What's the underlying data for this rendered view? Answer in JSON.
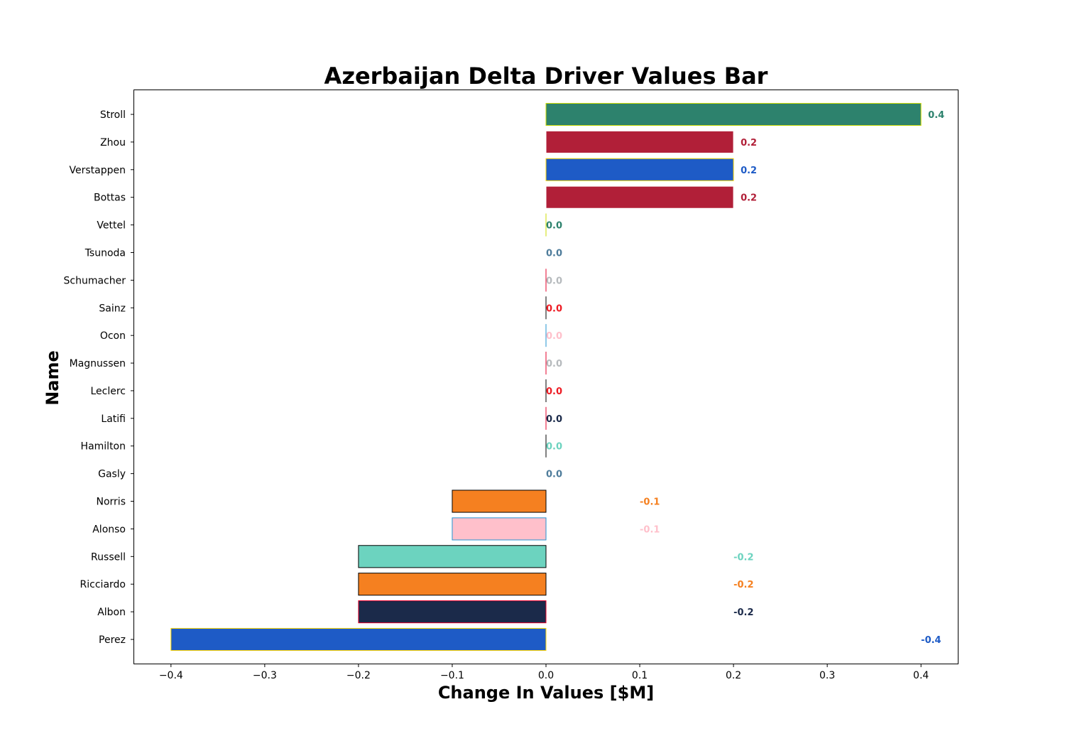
{
  "chart_data": {
    "type": "bar",
    "orientation": "horizontal",
    "title": "Azerbaijan Delta Driver Values Bar",
    "xlabel": "Change In Values [$M]",
    "ylabel": "Name",
    "xlim": [
      -0.44,
      0.44
    ],
    "xticks": [
      -0.4,
      -0.3,
      -0.2,
      -0.1,
      0.0,
      0.1,
      0.2,
      0.3,
      0.4
    ],
    "xtick_labels": [
      "−0.4",
      "−0.3",
      "−0.2",
      "−0.1",
      "0.0",
      "0.1",
      "0.2",
      "0.3",
      "0.4"
    ],
    "grid": false,
    "bars": [
      {
        "name": "Stroll",
        "value": 0.4,
        "label": "0.4",
        "fill": "#2d826d",
        "edge": "#cedc00"
      },
      {
        "name": "Zhou",
        "value": 0.2,
        "label": "0.2",
        "fill": "#b11f38",
        "edge": "#ffffff"
      },
      {
        "name": "Verstappen",
        "value": 0.2,
        "label": "0.2",
        "fill": "#1e5bc6",
        "edge": "#ffd700"
      },
      {
        "name": "Bottas",
        "value": 0.2,
        "label": "0.2",
        "fill": "#b11f38",
        "edge": "#ffffff"
      },
      {
        "name": "Vettel",
        "value": 0.0,
        "label": "0.0",
        "fill": "#2d826d",
        "edge": "#cedc00"
      },
      {
        "name": "Tsunoda",
        "value": 0.0,
        "label": "0.0",
        "fill": "#4e7c9b",
        "edge": "#ffffff"
      },
      {
        "name": "Schumacher",
        "value": 0.0,
        "label": "0.0",
        "fill": "#b6babd",
        "edge": "#e6002b"
      },
      {
        "name": "Sainz",
        "value": 0.0,
        "label": "0.0",
        "fill": "#ed1c24",
        "edge": "#000000"
      },
      {
        "name": "Ocon",
        "value": 0.0,
        "label": "0.0",
        "fill": "#ffc0cb",
        "edge": "#2293d1"
      },
      {
        "name": "Magnussen",
        "value": 0.0,
        "label": "0.0",
        "fill": "#b6babd",
        "edge": "#e6002b"
      },
      {
        "name": "Leclerc",
        "value": 0.0,
        "label": "0.0",
        "fill": "#ed1c24",
        "edge": "#000000"
      },
      {
        "name": "Latifi",
        "value": 0.0,
        "label": "0.0",
        "fill": "#1b2a4a",
        "edge": "#e6002b"
      },
      {
        "name": "Hamilton",
        "value": 0.0,
        "label": "0.0",
        "fill": "#6cd3bf",
        "edge": "#000000"
      },
      {
        "name": "Gasly",
        "value": 0.0,
        "label": "0.0",
        "fill": "#4e7c9b",
        "edge": "#ffffff"
      },
      {
        "name": "Norris",
        "value": -0.1,
        "label": "-0.1",
        "fill": "#f58020",
        "edge": "#000000"
      },
      {
        "name": "Alonso",
        "value": -0.1,
        "label": "-0.1",
        "fill": "#ffc0cb",
        "edge": "#2293d1"
      },
      {
        "name": "Russell",
        "value": -0.2,
        "label": "-0.2",
        "fill": "#6cd3bf",
        "edge": "#000000"
      },
      {
        "name": "Ricciardo",
        "value": -0.2,
        "label": "-0.2",
        "fill": "#f58020",
        "edge": "#000000"
      },
      {
        "name": "Albon",
        "value": -0.2,
        "label": "-0.2",
        "fill": "#1b2a4a",
        "edge": "#e6002b"
      },
      {
        "name": "Perez",
        "value": -0.4,
        "label": "-0.4",
        "fill": "#1e5bc6",
        "edge": "#ffd700"
      }
    ]
  }
}
